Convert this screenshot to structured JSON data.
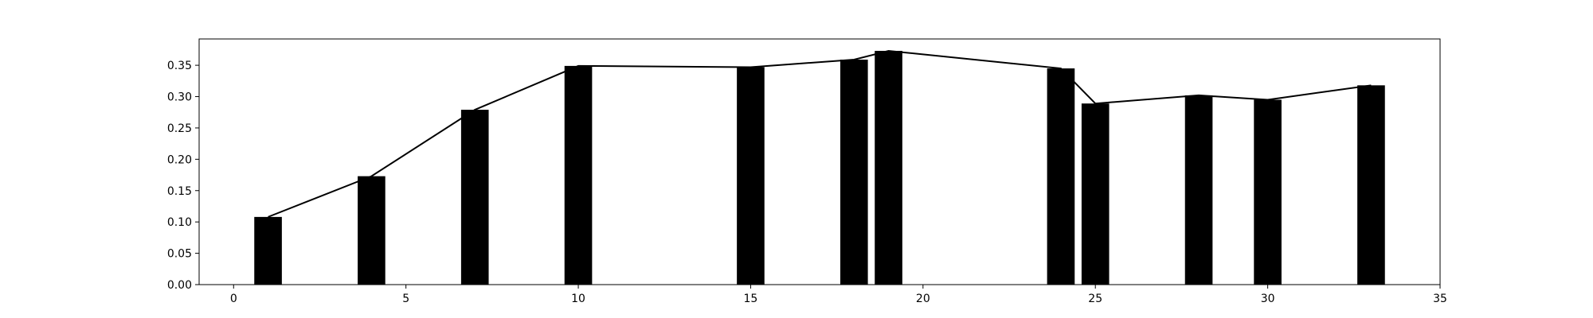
{
  "chart_data": {
    "type": "bar",
    "title": "",
    "xlabel": "",
    "ylabel": "",
    "xlim": [
      -1,
      35
    ],
    "ylim": [
      0,
      0.392
    ],
    "x": [
      1,
      4,
      7,
      10,
      15,
      18,
      19,
      24,
      25,
      28,
      30,
      33
    ],
    "values": [
      0.108,
      0.173,
      0.279,
      0.349,
      0.347,
      0.359,
      0.373,
      0.345,
      0.289,
      0.302,
      0.295,
      0.318
    ],
    "bar_width": 0.8,
    "bar_color": "#000000",
    "line": {
      "show": true,
      "color": "#000000"
    },
    "x_ticks": [
      0,
      5,
      10,
      15,
      20,
      25,
      30,
      35
    ],
    "x_tick_labels": [
      "0",
      "5",
      "10",
      "15",
      "20",
      "25",
      "30",
      "35"
    ],
    "y_ticks": [
      0.0,
      0.05,
      0.1,
      0.15,
      0.2,
      0.25,
      0.3,
      0.35
    ],
    "y_tick_labels": [
      "0.00",
      "0.05",
      "0.10",
      "0.15",
      "0.20",
      "0.25",
      "0.30",
      "0.35"
    ],
    "grid": false,
    "legend": "none"
  }
}
